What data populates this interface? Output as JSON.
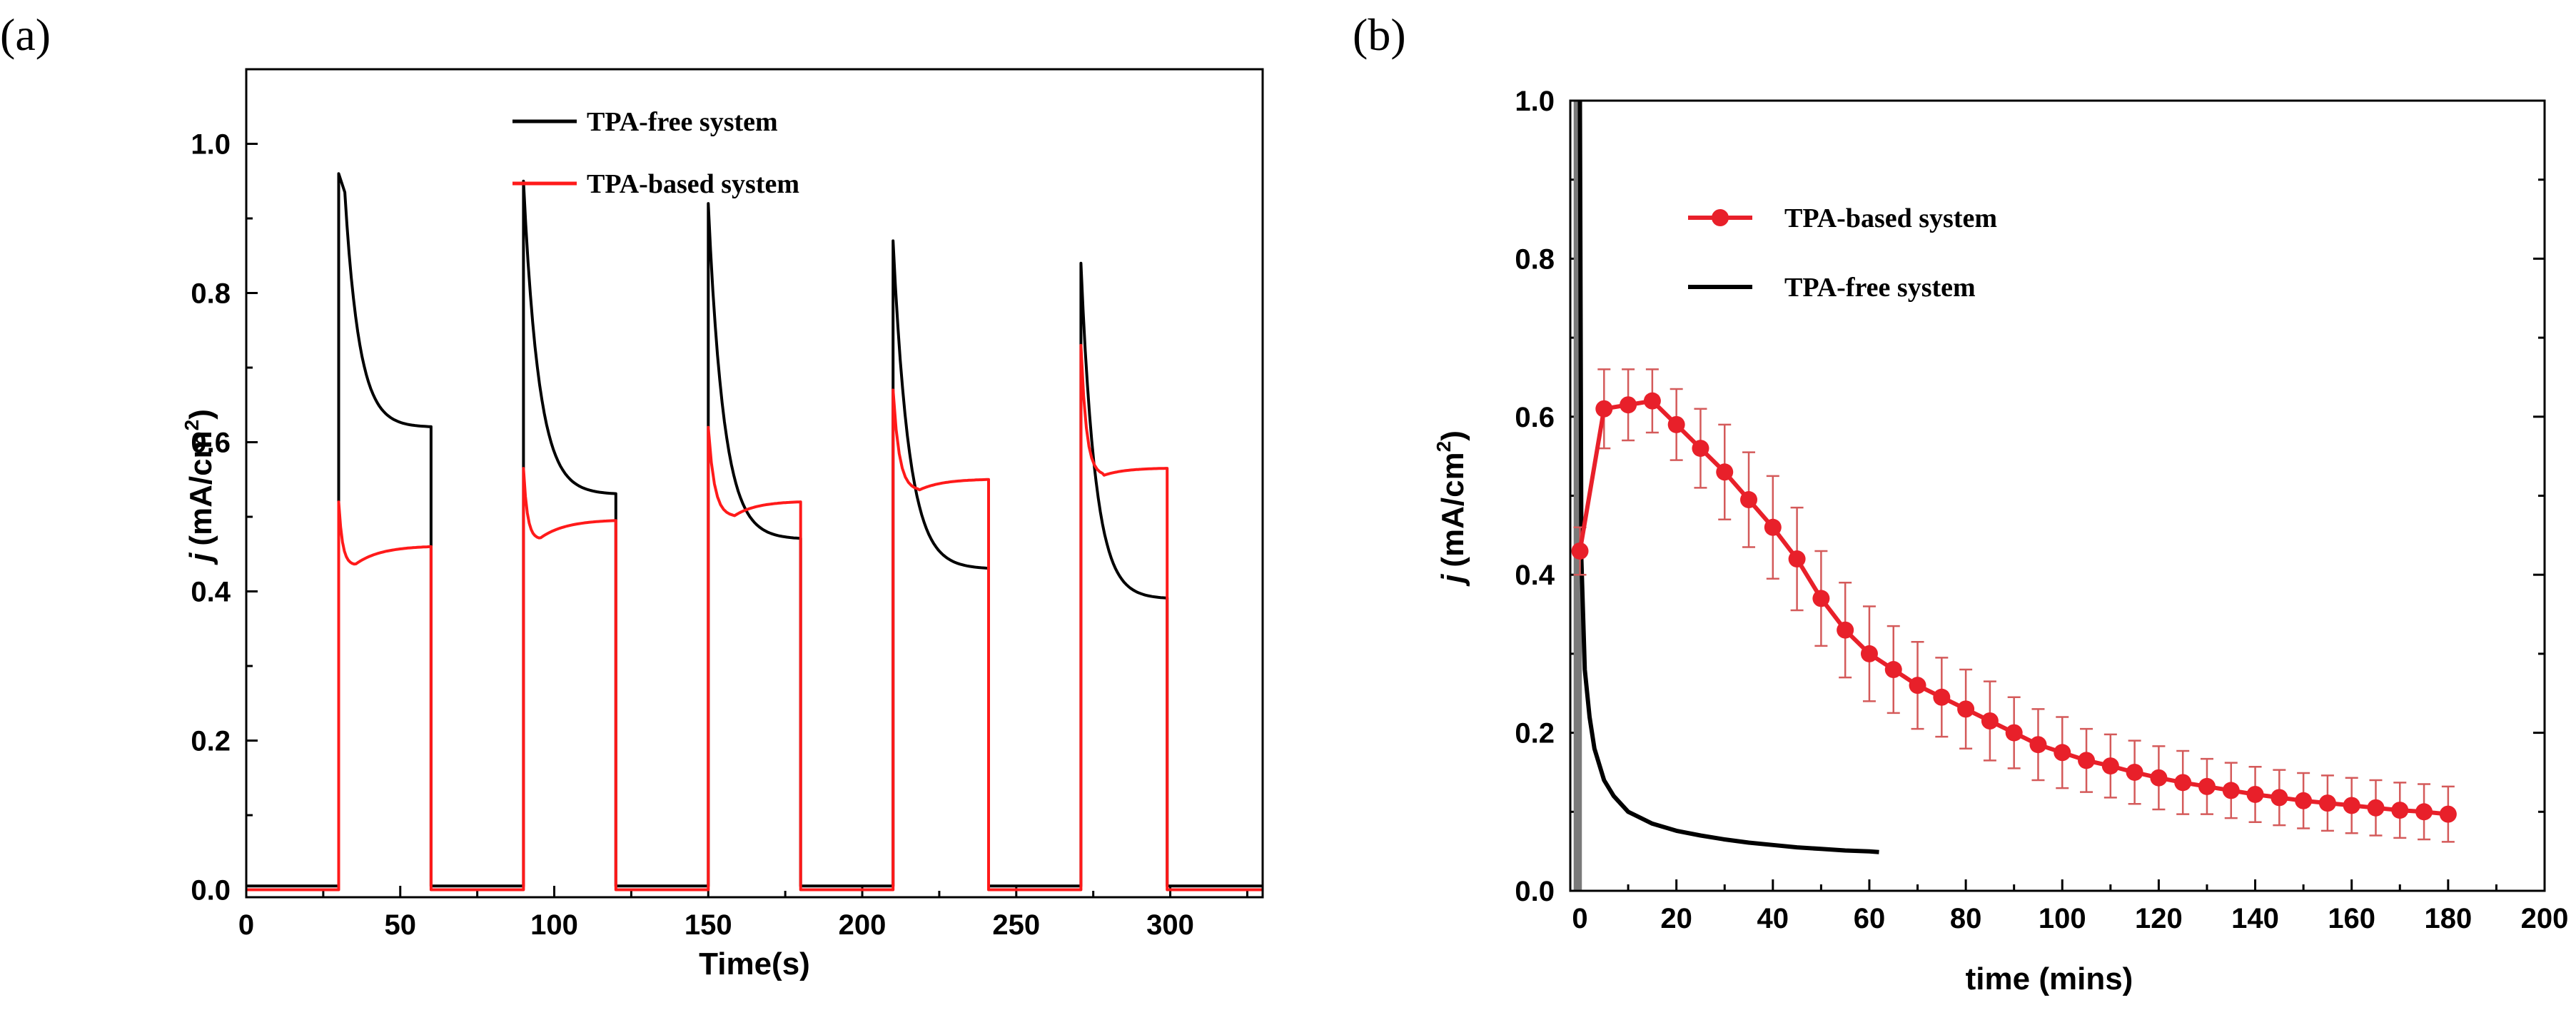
{
  "chart_data": [
    {
      "panel": "(a)",
      "type": "line",
      "xlabel": "Time(s)",
      "ylabel": "j (mA/cm2)",
      "ylabel_parts": {
        "symbol": "j",
        "unit": "(mA/cm",
        "sup": "2",
        "close": ")"
      },
      "xlim": [
        0,
        330
      ],
      "ylim": [
        -0.01,
        1.1
      ],
      "xticks": [
        0,
        50,
        100,
        150,
        200,
        250,
        300
      ],
      "yticks": [
        0.0,
        0.2,
        0.4,
        0.6,
        0.8,
        1.0
      ],
      "ytick_labels": [
        "0.0",
        "0.2",
        "0.4",
        "0.6",
        "0.8",
        "1.0"
      ],
      "legend": [
        {
          "label": "TPA-free system",
          "color": "#000000"
        },
        {
          "label": "TPA-based system",
          "color": "#ff1a1a"
        }
      ],
      "series": [
        {
          "name": "TPA-free system",
          "color": "#000000",
          "baseline": 0.005,
          "pulses": [
            {
              "on": 30,
              "off": 60,
              "spike": 0.96,
              "peak": 0.935,
              "peak_time": 32,
              "end": 0.62
            },
            {
              "on": 90,
              "off": 120,
              "spike": 0.95,
              "peak": 0.95,
              "peak_time": 90,
              "end": 0.53
            },
            {
              "on": 150,
              "off": 180,
              "spike": 0.92,
              "peak": 0.92,
              "peak_time": 150,
              "end": 0.47
            },
            {
              "on": 210,
              "off": 241,
              "spike": 0.87,
              "peak": 0.87,
              "peak_time": 210,
              "end": 0.43
            },
            {
              "on": 271,
              "off": 299,
              "spike": 0.84,
              "peak": 0.84,
              "peak_time": 271,
              "end": 0.39
            }
          ]
        },
        {
          "name": "TPA-based system",
          "color": "#ff1a1a",
          "baseline": 0.0,
          "pulses": [
            {
              "on": 30,
              "off": 60,
              "spike": 0.52,
              "min": 0.435,
              "min_time": 35,
              "end": 0.46
            },
            {
              "on": 90,
              "off": 120,
              "spike": 0.565,
              "min": 0.47,
              "min_time": 95,
              "end": 0.495
            },
            {
              "on": 150,
              "off": 180,
              "spike": 0.62,
              "min": 0.5,
              "min_time": 158,
              "end": 0.52
            },
            {
              "on": 210,
              "off": 241,
              "spike": 0.67,
              "min": 0.535,
              "min_time": 218,
              "end": 0.55
            },
            {
              "on": 271,
              "off": 299,
              "spike": 0.73,
              "min": 0.555,
              "min_time": 278,
              "end": 0.565
            }
          ]
        }
      ]
    },
    {
      "panel": "(b)",
      "type": "line",
      "xlabel": "time (mins)",
      "ylabel": "j (mA/cm2)",
      "ylabel_parts": {
        "symbol": "j",
        "unit": "(mA/cm",
        "sup": "2",
        "close": ")"
      },
      "xlim": [
        -2,
        200
      ],
      "ylim": [
        0,
        1.0
      ],
      "xticks": [
        0,
        20,
        40,
        60,
        80,
        100,
        120,
        140,
        160,
        180,
        200
      ],
      "yticks": [
        0.0,
        0.2,
        0.4,
        0.6,
        0.8,
        1.0
      ],
      "ytick_labels": [
        "0.0",
        "0.2",
        "0.4",
        "0.6",
        "0.8",
        "1.0"
      ],
      "legend": [
        {
          "label": "TPA-based system",
          "color": "#e8202a",
          "marker": "circle"
        },
        {
          "label": "TPA-free system",
          "color": "#000000"
        }
      ],
      "series": [
        {
          "name": "TPA-based system",
          "color": "#e8202a",
          "x": [
            0,
            5,
            10,
            15,
            20,
            25,
            30,
            35,
            40,
            45,
            50,
            55,
            60,
            65,
            70,
            75,
            80,
            85,
            90,
            95,
            100,
            105,
            110,
            115,
            120,
            125,
            130,
            135,
            140,
            145,
            150,
            155,
            160,
            165,
            170,
            175,
            180
          ],
          "y": [
            0.43,
            0.61,
            0.615,
            0.62,
            0.59,
            0.56,
            0.53,
            0.495,
            0.46,
            0.42,
            0.37,
            0.33,
            0.3,
            0.28,
            0.26,
            0.245,
            0.23,
            0.215,
            0.2,
            0.185,
            0.175,
            0.165,
            0.158,
            0.15,
            0.143,
            0.137,
            0.132,
            0.127,
            0.122,
            0.118,
            0.114,
            0.111,
            0.108,
            0.105,
            0.102,
            0.1,
            0.097
          ],
          "err": [
            0.03,
            0.05,
            0.045,
            0.04,
            0.045,
            0.05,
            0.06,
            0.06,
            0.065,
            0.065,
            0.06,
            0.06,
            0.06,
            0.055,
            0.055,
            0.05,
            0.05,
            0.05,
            0.045,
            0.045,
            0.045,
            0.04,
            0.04,
            0.04,
            0.04,
            0.04,
            0.035,
            0.035,
            0.035,
            0.035,
            0.035,
            0.035,
            0.035,
            0.035,
            0.035,
            0.035,
            0.035
          ]
        },
        {
          "name": "TPA-free system",
          "color": "#000000",
          "x": [
            0,
            0.3,
            1,
            2,
            3,
            5,
            7,
            10,
            15,
            20,
            25,
            30,
            35,
            40,
            45,
            50,
            55,
            60,
            62
          ],
          "y": [
            1.0,
            0.42,
            0.28,
            0.22,
            0.18,
            0.14,
            0.12,
            0.1,
            0.085,
            0.076,
            0.07,
            0.065,
            0.061,
            0.058,
            0.055,
            0.053,
            0.051,
            0.05,
            0.049
          ]
        }
      ]
    }
  ]
}
